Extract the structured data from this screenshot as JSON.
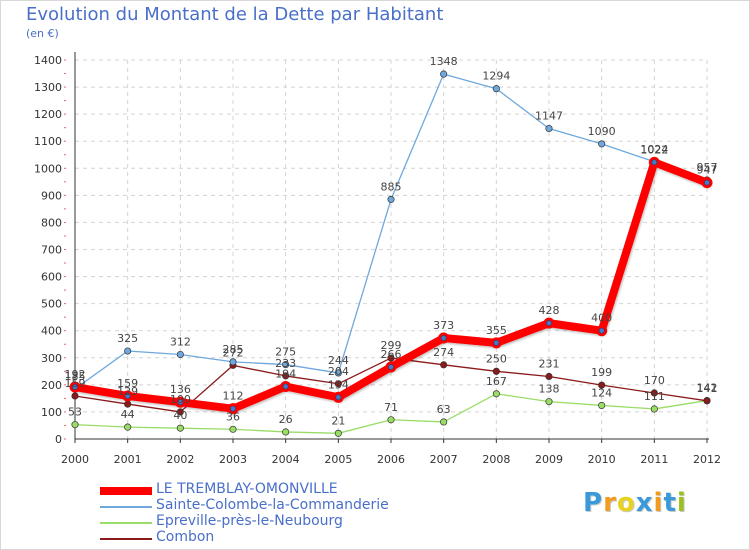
{
  "title": "Evolution du Montant de la Dette par Habitant",
  "unit": "(en €)",
  "brand": {
    "text": "Proxiti",
    "colors": [
      "#3a9ad9",
      "#f29c1f",
      "#e8d21f",
      "#3a9ad9",
      "#f29c1f",
      "#3a9ad9",
      "#9ac21f"
    ]
  },
  "chart_data": {
    "type": "line",
    "title": "Evolution du Montant de la Dette par Habitant",
    "ylabel": "(en €)",
    "xlabel": "",
    "x": [
      "2000",
      "2001",
      "2002",
      "2003",
      "2004",
      "2005",
      "2006",
      "2007",
      "2008",
      "2009",
      "2010",
      "2011",
      "2012"
    ],
    "ylim": [
      0,
      1400
    ],
    "yticks": [
      0,
      100,
      200,
      300,
      400,
      500,
      600,
      700,
      800,
      900,
      1000,
      1100,
      1200,
      1300,
      1400
    ],
    "grid": true,
    "legend_position": "bottom-left",
    "series": [
      {
        "name": "LE TREMBLAY-OMONVILLE",
        "color": "#ff0000",
        "values": [
          192,
          159,
          136,
          112,
          194,
          154,
          266,
          373,
          355,
          428,
          400,
          1022,
          947
        ],
        "labels": [
          "192",
          "159",
          "136",
          "112",
          "194",
          "154",
          "266",
          "373",
          "355",
          "428",
          "400",
          "1022",
          "947"
        ]
      },
      {
        "name": "Sainte-Colombe-la-Commanderie",
        "color": "#6fa8dc",
        "values": [
          185,
          325,
          312,
          285,
          275,
          244,
          885,
          1348,
          1294,
          1147,
          1090,
          1024,
          957
        ],
        "labels": [
          "185",
          "325",
          "312",
          "285",
          "275",
          "244",
          "885",
          "1348",
          "1294",
          "1147",
          "1090",
          "1024",
          "957"
        ]
      },
      {
        "name": "Epreville-près-le-Neubourg",
        "color": "#99dd66",
        "values": [
          53,
          44,
          40,
          36,
          26,
          21,
          71,
          63,
          167,
          138,
          124,
          111,
          142
        ],
        "labels": [
          "53",
          "44",
          "40",
          "36",
          "26",
          "21",
          "71",
          "63",
          "167",
          "138",
          "124",
          "111",
          "142"
        ]
      },
      {
        "name": "Combon",
        "color": "#8b1a1a",
        "values": [
          159,
          129,
          100,
          272,
          233,
          204,
          299,
          274,
          250,
          231,
          199,
          170,
          141
        ],
        "labels": [
          "159",
          "129",
          "100",
          "272",
          "233",
          "204",
          "299",
          "274",
          "250",
          "231",
          "199",
          "170",
          "141"
        ]
      }
    ]
  }
}
